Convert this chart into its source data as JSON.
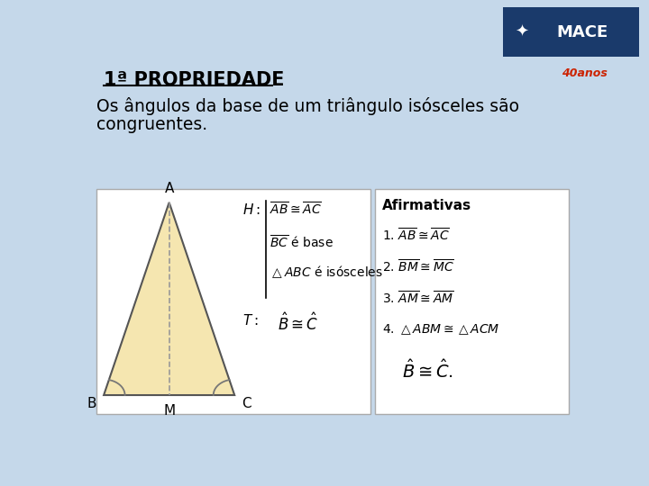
{
  "slide_bg": "#c5d8ea",
  "title_text": "1ª PROPRIEDADE",
  "subtitle_line1": "Os ângulos da base de um triângulo isósceles são",
  "subtitle_line2": "congruentes.",
  "triangle_fill": "#f5e6b0",
  "triangle_stroke": "#555555",
  "dashed_color": "#999999",
  "logo_bg": "#1a3a6b",
  "logo_text_color": "#ffffff",
  "logo_accent": "#e8a020"
}
